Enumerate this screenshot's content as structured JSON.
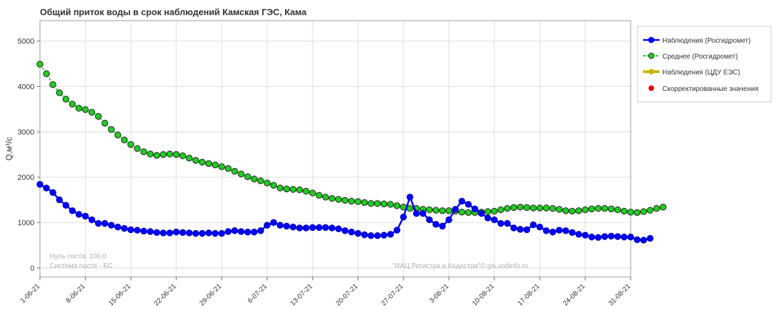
{
  "chart_data": {
    "type": "line",
    "title": "Общий приток воды в срок наблюдений Камская ГЭС,  Кама",
    "ylabel": "Q,м³/с",
    "xlabel": "",
    "ylim": [
      -200,
      5450
    ],
    "yticks": [
      0,
      1000,
      2000,
      3000,
      4000,
      5000
    ],
    "x_start": "2021-06-01",
    "x_end": "2021-08-31",
    "xtick_labels": [
      "1-06-21",
      "8-06-21",
      "15-06-21",
      "22-06-21",
      "29-06-21",
      "6-07-21",
      "13-07-21",
      "20-07-21",
      "27-07-21",
      "3-08-21",
      "10-08-21",
      "17-08-21",
      "24-08-21",
      "31-08-21"
    ],
    "grid": true,
    "legend_position": "right",
    "series": [
      {
        "name": "Наблюдения (Росгидромет)",
        "color": "#0000ff",
        "values": [
          1840,
          1760,
          1660,
          1500,
          1380,
          1260,
          1180,
          1140,
          1060,
          980,
          980,
          940,
          900,
          870,
          840,
          830,
          810,
          800,
          780,
          770,
          770,
          790,
          780,
          770,
          760,
          760,
          770,
          760,
          760,
          800,
          820,
          800,
          790,
          790,
          820,
          940,
          1000,
          940,
          920,
          900,
          880,
          880,
          890,
          890,
          890,
          880,
          860,
          820,
          790,
          760,
          730,
          710,
          710,
          720,
          740,
          830,
          1120,
          1560,
          1200,
          1200,
          1060,
          960,
          920,
          1060,
          1290,
          1470,
          1400,
          1300,
          1200,
          1100,
          1060,
          980,
          980,
          880,
          850,
          840,
          950,
          900,
          820,
          790,
          830,
          820,
          780,
          740,
          720,
          680,
          670,
          690,
          700,
          690,
          680,
          680,
          620,
          610,
          650
        ]
      },
      {
        "name": "Среднее (Росгидромет)",
        "color": "#22cc22",
        "values": [
          4490,
          4280,
          4040,
          3860,
          3720,
          3610,
          3520,
          3490,
          3430,
          3340,
          3190,
          3050,
          2930,
          2820,
          2720,
          2630,
          2560,
          2510,
          2480,
          2500,
          2510,
          2500,
          2470,
          2420,
          2370,
          2330,
          2300,
          2270,
          2230,
          2190,
          2130,
          2070,
          2010,
          1960,
          1920,
          1870,
          1820,
          1760,
          1740,
          1730,
          1720,
          1690,
          1650,
          1600,
          1560,
          1530,
          1510,
          1490,
          1470,
          1460,
          1440,
          1420,
          1420,
          1410,
          1400,
          1370,
          1340,
          1310,
          1310,
          1290,
          1280,
          1270,
          1260,
          1260,
          1250,
          1230,
          1220,
          1220,
          1230,
          1240,
          1250,
          1280,
          1310,
          1330,
          1340,
          1330,
          1320,
          1320,
          1320,
          1310,
          1290,
          1260,
          1250,
          1260,
          1280,
          1300,
          1310,
          1310,
          1300,
          1280,
          1250,
          1230,
          1220,
          1240,
          1270,
          1310,
          1340
        ]
      },
      {
        "name": "Наблюдения (ЦДУ ЕЭС)",
        "color": "#c8b400",
        "values": []
      },
      {
        "name": "Скорректированные значения",
        "color": "#dd0000",
        "values": []
      }
    ],
    "annotations": [
      "Нуль поста: 100.0",
      "Система поста - БС",
      "\"ИАЦ Регистра и Кадастра\"© gis.vodinfo.ru"
    ]
  }
}
